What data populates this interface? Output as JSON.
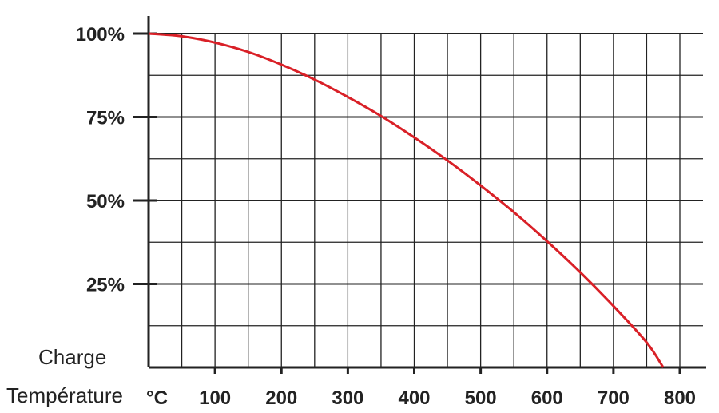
{
  "chart_data": {
    "type": "line",
    "ylabel": "Charge",
    "xlabel": "Température",
    "x_unit": "°C",
    "xlim": [
      0,
      840
    ],
    "ylim": [
      0,
      100
    ],
    "x_ticks": [
      100,
      200,
      300,
      400,
      500,
      600,
      700,
      800
    ],
    "x_tick_labels": [
      "100",
      "200",
      "300",
      "400",
      "500",
      "600",
      "700",
      "800"
    ],
    "y_ticks": [
      25,
      50,
      75,
      100
    ],
    "y_tick_labels": [
      "25%",
      "50%",
      "75%",
      "100%"
    ],
    "x_gridlines": [
      50,
      100,
      150,
      200,
      250,
      300,
      350,
      400,
      450,
      500,
      550,
      600,
      650,
      700,
      750,
      800
    ],
    "y_gridlines": [
      12.5,
      25,
      37.5,
      50,
      62.5,
      75,
      87.5,
      100
    ],
    "grid": true,
    "colors": {
      "curve": "#d92027",
      "grid": "#222222"
    },
    "series": [
      {
        "x": [
          0,
          50,
          100,
          150,
          200,
          250,
          300,
          350,
          400,
          450,
          500,
          550,
          600,
          650,
          700,
          750,
          775
        ],
        "y": [
          100,
          99.2,
          97.3,
          94.5,
          90.7,
          86.2,
          81.0,
          75.3,
          68.9,
          62.0,
          54.5,
          46.5,
          37.8,
          28.5,
          18.4,
          7.5,
          0
        ]
      }
    ]
  }
}
